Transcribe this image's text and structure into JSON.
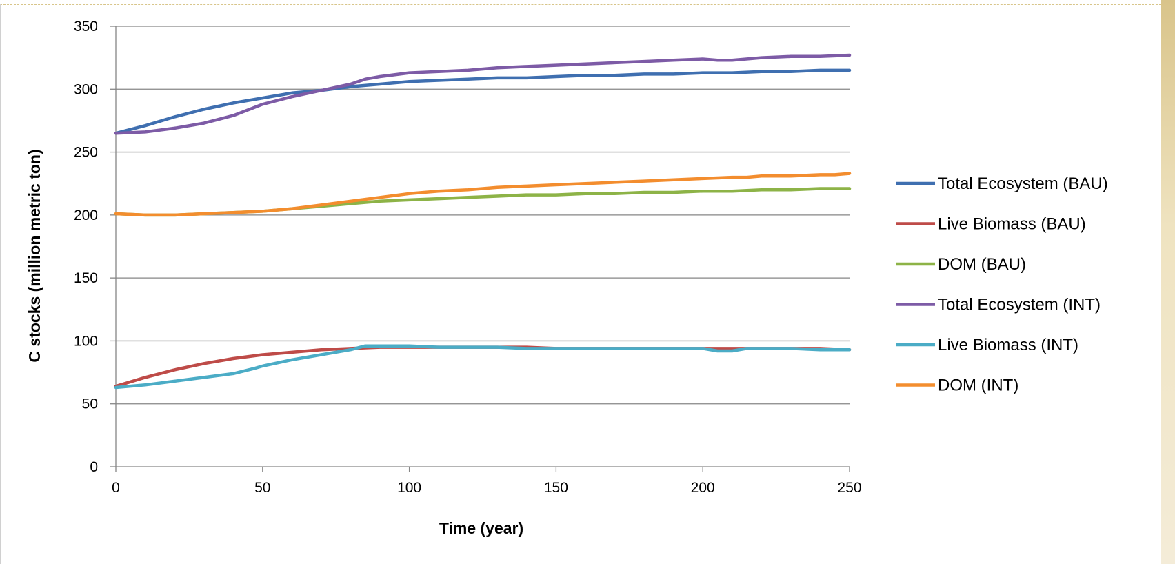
{
  "chart_data": {
    "type": "line",
    "xlabel": "Time (year)",
    "ylabel": "C stocks (million metric ton)",
    "xlim": [
      0,
      250
    ],
    "ylim": [
      0,
      350
    ],
    "xticks": [
      0,
      50,
      100,
      150,
      200,
      250
    ],
    "yticks": [
      0,
      50,
      100,
      150,
      200,
      250,
      300,
      350
    ],
    "grid": "horizontal",
    "legend_position": "right",
    "series": [
      {
        "name": "Total Ecosystem (BAU)",
        "color": "#3f6fb0",
        "x": [
          0,
          10,
          20,
          30,
          40,
          50,
          60,
          70,
          80,
          90,
          100,
          110,
          120,
          130,
          140,
          150,
          160,
          170,
          180,
          190,
          200,
          210,
          220,
          230,
          240,
          250
        ],
        "y": [
          265,
          271,
          278,
          284,
          289,
          293,
          297,
          299,
          302,
          304,
          306,
          307,
          308,
          309,
          309,
          310,
          311,
          311,
          312,
          312,
          313,
          313,
          314,
          314,
          315,
          315
        ]
      },
      {
        "name": "Live Biomass (BAU)",
        "color": "#be4b48",
        "x": [
          0,
          10,
          20,
          30,
          40,
          50,
          60,
          70,
          80,
          90,
          100,
          110,
          120,
          130,
          140,
          150,
          160,
          170,
          180,
          190,
          200,
          210,
          220,
          230,
          240,
          250
        ],
        "y": [
          64,
          71,
          77,
          82,
          86,
          89,
          91,
          93,
          94,
          95,
          95,
          95,
          95,
          95,
          95,
          94,
          94,
          94,
          94,
          94,
          94,
          94,
          94,
          94,
          94,
          93
        ]
      },
      {
        "name": "DOM (BAU)",
        "color": "#8db347",
        "x": [
          0,
          10,
          20,
          30,
          40,
          50,
          60,
          70,
          80,
          90,
          100,
          110,
          120,
          130,
          140,
          150,
          160,
          170,
          180,
          190,
          200,
          210,
          220,
          230,
          240,
          250
        ],
        "y": [
          201,
          200,
          200,
          201,
          202,
          203,
          205,
          207,
          209,
          211,
          212,
          213,
          214,
          215,
          216,
          216,
          217,
          217,
          218,
          218,
          219,
          219,
          220,
          220,
          221,
          221
        ]
      },
      {
        "name": "Total Ecosystem (INT)",
        "color": "#7d5ba6",
        "x": [
          0,
          10,
          20,
          30,
          40,
          50,
          60,
          70,
          80,
          85,
          90,
          100,
          110,
          120,
          130,
          140,
          150,
          160,
          170,
          180,
          190,
          200,
          205,
          210,
          220,
          230,
          240,
          250
        ],
        "y": [
          265,
          266,
          269,
          273,
          279,
          288,
          294,
          299,
          304,
          308,
          310,
          313,
          314,
          315,
          317,
          318,
          319,
          320,
          321,
          322,
          323,
          324,
          323,
          323,
          325,
          326,
          326,
          327
        ]
      },
      {
        "name": "Live Biomass (INT)",
        "color": "#4bacc6",
        "x": [
          0,
          10,
          20,
          30,
          40,
          47,
          50,
          60,
          70,
          80,
          85,
          90,
          100,
          110,
          120,
          130,
          140,
          150,
          160,
          170,
          180,
          190,
          200,
          205,
          210,
          215,
          220,
          230,
          240,
          250
        ],
        "y": [
          63,
          65,
          68,
          71,
          74,
          78,
          80,
          85,
          89,
          93,
          96,
          96,
          96,
          95,
          95,
          95,
          94,
          94,
          94,
          94,
          94,
          94,
          94,
          92,
          92,
          94,
          94,
          94,
          93,
          93
        ]
      },
      {
        "name": "DOM (INT)",
        "color": "#f38d2e",
        "x": [
          0,
          10,
          20,
          30,
          40,
          50,
          60,
          70,
          80,
          90,
          100,
          110,
          120,
          130,
          140,
          150,
          160,
          170,
          180,
          190,
          200,
          210,
          215,
          220,
          230,
          240,
          245,
          250
        ],
        "y": [
          201,
          200,
          200,
          201,
          202,
          203,
          205,
          208,
          211,
          214,
          217,
          219,
          220,
          222,
          223,
          224,
          225,
          226,
          227,
          228,
          229,
          230,
          230,
          231,
          231,
          232,
          232,
          233
        ]
      }
    ]
  }
}
